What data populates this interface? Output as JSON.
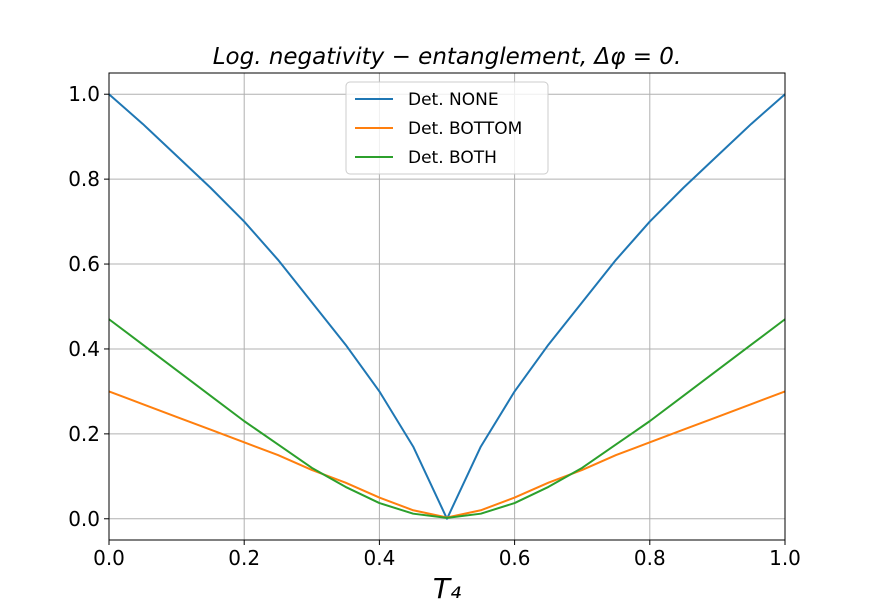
{
  "chart_data": {
    "type": "line",
    "title": "Log. negativity − entanglement, Δφ = 0.",
    "xlabel": "T₄",
    "ylabel": "",
    "xlim": [
      0.0,
      1.0
    ],
    "ylim": [
      -0.05,
      1.05
    ],
    "xticks": [
      0.0,
      0.2,
      0.4,
      0.6,
      0.8,
      1.0
    ],
    "xtick_labels": [
      "0.0",
      "0.2",
      "0.4",
      "0.6",
      "0.8",
      "1.0"
    ],
    "yticks": [
      0.0,
      0.2,
      0.4,
      0.6,
      0.8,
      1.0
    ],
    "ytick_labels": [
      "0.0",
      "0.2",
      "0.4",
      "0.6",
      "0.8",
      "1.0"
    ],
    "grid": true,
    "legend_position": "top-center",
    "x": [
      0.0,
      0.05,
      0.1,
      0.15,
      0.2,
      0.25,
      0.3,
      0.35,
      0.4,
      0.45,
      0.5,
      0.55,
      0.6,
      0.65,
      0.7,
      0.75,
      0.8,
      0.85,
      0.9,
      0.95,
      1.0
    ],
    "series": [
      {
        "name": "Det. NONE",
        "color": "#1f77b4",
        "values": [
          1.0,
          0.93,
          0.855,
          0.78,
          0.7,
          0.61,
          0.51,
          0.41,
          0.3,
          0.17,
          0.0,
          0.17,
          0.3,
          0.41,
          0.51,
          0.61,
          0.7,
          0.78,
          0.855,
          0.93,
          1.0
        ]
      },
      {
        "name": "Det. BOTTOM",
        "color": "#ff7f0e",
        "values": [
          0.3,
          0.27,
          0.24,
          0.21,
          0.18,
          0.15,
          0.115,
          0.085,
          0.05,
          0.02,
          0.003,
          0.02,
          0.05,
          0.085,
          0.115,
          0.15,
          0.18,
          0.21,
          0.24,
          0.27,
          0.3
        ]
      },
      {
        "name": "Det. BOTH",
        "color": "#2ca02c",
        "values": [
          0.47,
          0.41,
          0.35,
          0.29,
          0.23,
          0.175,
          0.12,
          0.075,
          0.037,
          0.012,
          0.002,
          0.012,
          0.037,
          0.075,
          0.12,
          0.175,
          0.23,
          0.29,
          0.35,
          0.41,
          0.47
        ]
      }
    ]
  }
}
